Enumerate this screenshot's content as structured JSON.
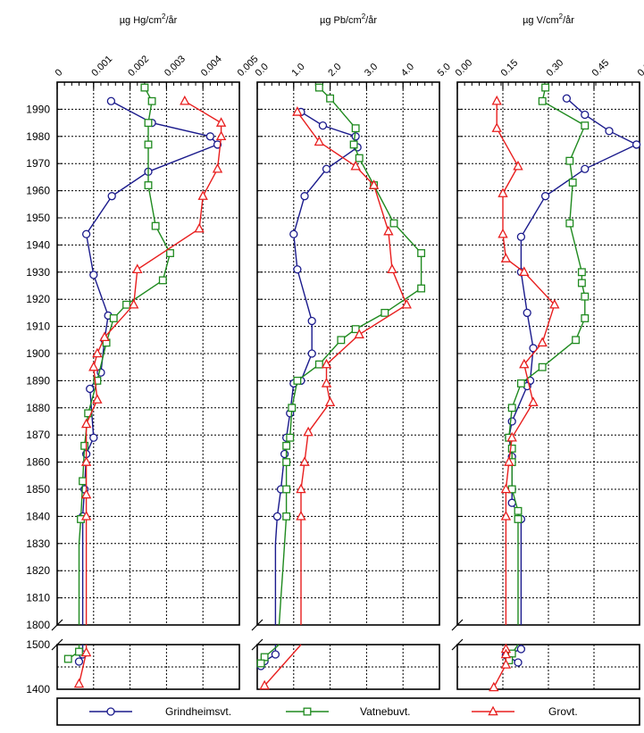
{
  "chart_data": {
    "type": "line",
    "y_axis": {
      "ticks_upper": [
        1800,
        1810,
        1820,
        1830,
        1840,
        1850,
        1860,
        1870,
        1880,
        1890,
        1900,
        1910,
        1920,
        1930,
        1940,
        1950,
        1960,
        1970,
        1980,
        1990
      ],
      "ticks_lower": [
        1400,
        1500
      ]
    },
    "legend": {
      "position": "bottom",
      "items": [
        {
          "series": "Grindheimsvt.",
          "color": "#1a1a8c",
          "marker": "circle"
        },
        {
          "series": "Vatnebuvt.",
          "color": "#1f8a1f",
          "marker": "square"
        },
        {
          "series": "Grovt.",
          "color": "#e81e1e",
          "marker": "triangle"
        }
      ]
    },
    "panels": [
      {
        "title_base": "µg Hg/cm",
        "title_sup": "2",
        "title_unit": "/år",
        "xlim": [
          0,
          0.005
        ],
        "xticks": [
          0,
          0.001,
          0.002,
          0.003,
          0.004,
          0.005
        ],
        "xtick_labels": [
          "0",
          "0.001",
          "0.002",
          "0.003",
          "0.004",
          "0.005"
        ],
        "series": [
          {
            "name": "Grindheimsvt.",
            "x": [
              0.00148,
              0.0026,
              0.0042,
              0.0044,
              0.0025,
              0.0015,
              0.0008,
              0.001,
              0.0014,
              0.0013,
              0.0012,
              0.0009,
              0.001,
              0.0008,
              0.00075,
              0.0007,
              0.0007,
              0.0007,
              0.0007,
              0.0007,
              0.0007,
              0.0007,
              0.0007,
              0.0006
            ],
            "y": [
              1993,
              1985,
              1980,
              1977,
              1967,
              1958,
              1944,
              1929,
              1914,
              1905,
              1893,
              1887,
              1869,
              1863,
              1850,
              1840,
              1830,
              1820,
              1810,
              1800,
              1800,
              1500,
              1478,
              1462
            ]
          },
          {
            "name": "Vatnebuvt.",
            "x": [
              0.0024,
              0.0026,
              0.0025,
              0.0025,
              0.0025,
              0.0027,
              0.0031,
              0.0029,
              0.0019,
              0.00155,
              0.00135,
              0.0011,
              0.00085,
              0.00075,
              0.0007,
              0.00065,
              0.0006,
              0.0006,
              0.0006,
              0.0006,
              0.0006,
              0.0006,
              0.0006,
              0.0003
            ],
            "y": [
              1998,
              1993,
              1985,
              1977,
              1962,
              1947,
              1937,
              1927,
              1918,
              1913,
              1904,
              1890,
              1878,
              1866,
              1853,
              1839,
              1830,
              1820,
              1810,
              1800,
              1800,
              1500,
              1484,
              1468
            ]
          },
          {
            "name": "Grovt.",
            "x": [
              0.0035,
              0.0045,
              0.0045,
              0.0044,
              0.004,
              0.0039,
              0.0022,
              0.0021,
              0.0013,
              0.0011,
              0.001,
              0.0011,
              0.0008,
              0.0008,
              0.0008,
              0.0008,
              0.0008,
              0.0008,
              0.0008,
              0.0008,
              0.0008,
              0.0008,
              0.0006
            ],
            "y": [
              1993,
              1985,
              1980,
              1968,
              1958,
              1946,
              1931,
              1918,
              1906,
              1900,
              1895,
              1883,
              1874,
              1860,
              1848,
              1840,
              1830,
              1820,
              1810,
              1800,
              1500,
              1482,
              1412
            ]
          }
        ]
      },
      {
        "title_base": "µg Pb/cm",
        "title_sup": "2",
        "title_unit": "/år",
        "xlim": [
          0,
          5.0
        ],
        "xticks": [
          0,
          1.0,
          2.0,
          3.0,
          4.0,
          5.0
        ],
        "xtick_labels": [
          "0.0",
          "1.0",
          "2.0",
          "3.0",
          "4.0",
          "5.0"
        ],
        "series": [
          {
            "name": "Grindheimsvt.",
            "x": [
              1.2,
              1.8,
              2.7,
              2.75,
              1.9,
              1.3,
              1.0,
              1.1,
              1.5,
              1.5,
              1.2,
              1.0,
              0.9,
              0.8,
              0.75,
              0.65,
              0.55,
              0.5,
              0.5,
              0.5,
              0.5,
              0.5,
              0.5,
              0.2,
              0.1
            ],
            "y": [
              1989,
              1984,
              1980,
              1976,
              1968,
              1958,
              1944,
              1931,
              1912,
              1900,
              1890,
              1889,
              1878,
              1869,
              1863,
              1850,
              1840,
              1830,
              1820,
              1810,
              1800,
              1500,
              1478,
              1463,
              1452
            ]
          },
          {
            "name": "Vatnebuvt.",
            "x": [
              1.7,
              2.0,
              2.7,
              2.65,
              2.8,
              3.2,
              3.75,
              4.5,
              4.5,
              3.5,
              2.7,
              2.3,
              1.7,
              1.1,
              0.95,
              0.9,
              0.8,
              0.8,
              0.8,
              0.8,
              0.75,
              0.7,
              0.65,
              0.6,
              0.6,
              0.2,
              0.1
            ],
            "y": [
              1998,
              1994,
              1983,
              1977,
              1972,
              1962,
              1948,
              1937,
              1924,
              1915,
              1909,
              1905,
              1896,
              1890,
              1880,
              1869,
              1866,
              1860,
              1850,
              1840,
              1830,
              1820,
              1810,
              1800,
              1500,
              1472,
              1458
            ]
          },
          {
            "name": "Grovt.",
            "x": [
              1.1,
              1.7,
              2.7,
              3.2,
              3.6,
              3.7,
              4.1,
              2.8,
              1.9,
              1.9,
              2.0,
              1.4,
              1.3,
              1.2,
              1.2,
              1.2,
              1.2,
              1.2,
              1.2,
              1.2,
              1.2,
              0.2
            ],
            "y": [
              1989,
              1978,
              1969,
              1962,
              1945,
              1931,
              1918,
              1907,
              1896,
              1889,
              1882,
              1871,
              1860,
              1850,
              1840,
              1830,
              1820,
              1810,
              1800,
              1800,
              1500,
              1408
            ]
          }
        ]
      },
      {
        "title_base": "µg V/cm",
        "title_sup": "2",
        "title_unit": "/år",
        "xlim": [
          0,
          0.6
        ],
        "xticks": [
          0,
          0.15,
          0.3,
          0.45,
          0.6
        ],
        "xtick_labels": [
          "0.00",
          "0.15",
          "0.30",
          "0.45",
          "0.60"
        ],
        "series": [
          {
            "name": "Grindheimsvt.",
            "x": [
              0.36,
              0.42,
              0.5,
              0.59,
              0.42,
              0.29,
              0.21,
              0.21,
              0.23,
              0.25,
              0.24,
              0.23,
              0.18,
              0.17,
              0.18,
              0.18,
              0.18,
              0.21,
              0.21,
              0.21,
              0.21,
              0.21,
              0.21,
              0.21,
              0.21,
              0.16,
              0.2
            ],
            "y": [
              1994,
              1988,
              1982,
              1977,
              1968,
              1958,
              1943,
              1930,
              1915,
              1902,
              1890,
              1888,
              1875,
              1869,
              1862,
              1850,
              1845,
              1839,
              1830,
              1820,
              1810,
              1800,
              1800,
              1500,
              1490,
              1476,
              1460
            ]
          },
          {
            "name": "Vatnebuvt.",
            "x": [
              0.29,
              0.28,
              0.42,
              0.37,
              0.38,
              0.37,
              0.41,
              0.41,
              0.42,
              0.42,
              0.39,
              0.28,
              0.21,
              0.18,
              0.17,
              0.18,
              0.18,
              0.18,
              0.2,
              0.2,
              0.2,
              0.2,
              0.2,
              0.2,
              0.2,
              0.18,
              0.17
            ],
            "y": [
              1998,
              1993,
              1984,
              1971,
              1963,
              1948,
              1930,
              1926,
              1921,
              1913,
              1905,
              1895,
              1889,
              1880,
              1869,
              1865,
              1860,
              1850,
              1842,
              1839,
              1830,
              1820,
              1810,
              1800,
              1500,
              1480,
              1465
            ]
          },
          {
            "name": "Grovt.",
            "x": [
              0.13,
              0.13,
              0.2,
              0.15,
              0.15,
              0.16,
              0.22,
              0.32,
              0.28,
              0.22,
              0.25,
              0.18,
              0.17,
              0.16,
              0.16,
              0.16,
              0.16,
              0.16,
              0.16,
              0.16,
              0.16,
              0.16,
              0.16,
              0.16,
              0.12
            ],
            "y": [
              1993,
              1983,
              1969,
              1959,
              1944,
              1935,
              1930,
              1918,
              1904,
              1896,
              1882,
              1869,
              1860,
              1850,
              1840,
              1830,
              1820,
              1810,
              1800,
              1800,
              1500,
              1490,
              1478,
              1455,
              1404
            ]
          }
        ]
      }
    ]
  }
}
